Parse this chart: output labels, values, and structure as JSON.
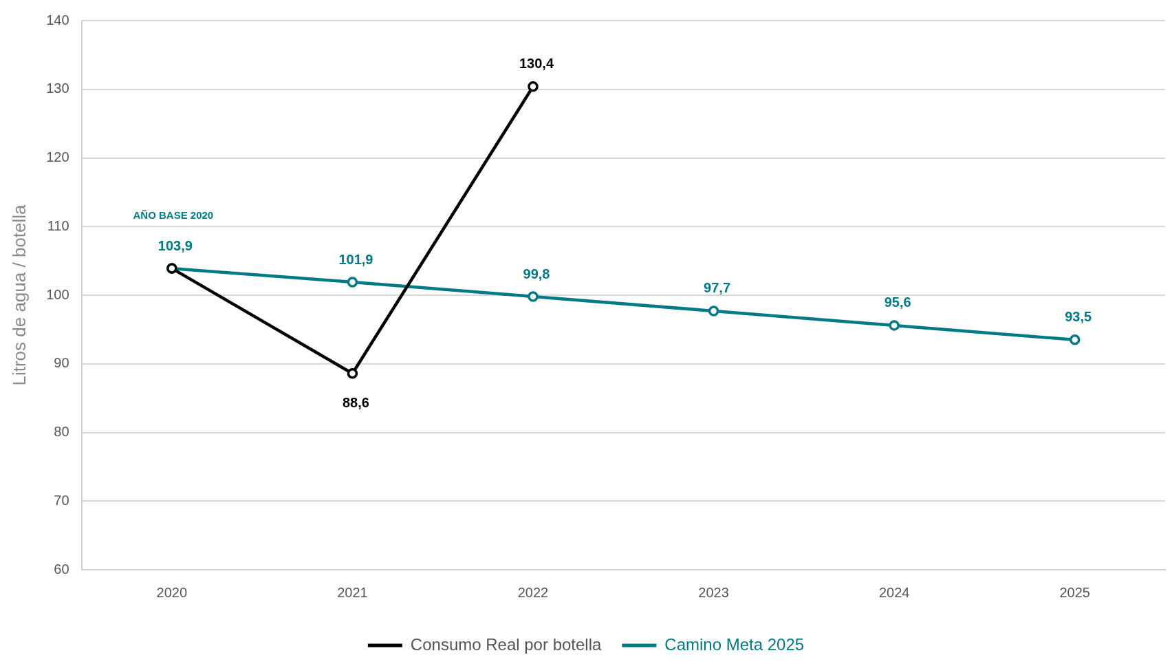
{
  "chart_data": {
    "type": "line",
    "ylabel": "Litros de agua / botella",
    "categories": [
      "2020",
      "2021",
      "2022",
      "2023",
      "2024",
      "2025"
    ],
    "series": [
      {
        "name": "Consumo Real por botella",
        "color": "#000000",
        "values": [
          103.9,
          88.6,
          130.4,
          null,
          null,
          null
        ],
        "value_labels": [
          null,
          "88,6",
          "130,4",
          null,
          null,
          null
        ]
      },
      {
        "name": "Camino Meta 2025",
        "color": "#007a87",
        "values": [
          103.9,
          101.9,
          99.8,
          97.7,
          95.6,
          93.5
        ],
        "value_labels": [
          "103,9",
          "101,9",
          "99,8",
          "97,7",
          "95,6",
          "93,5"
        ]
      }
    ],
    "annotations": [
      "AÑO BASE 2020"
    ],
    "ylim": [
      60,
      140
    ],
    "yticks": [
      60,
      70,
      80,
      90,
      100,
      110,
      120,
      130,
      140
    ],
    "grid": "y",
    "legend": "bottom",
    "marker": "circle",
    "line_style": "solid"
  }
}
